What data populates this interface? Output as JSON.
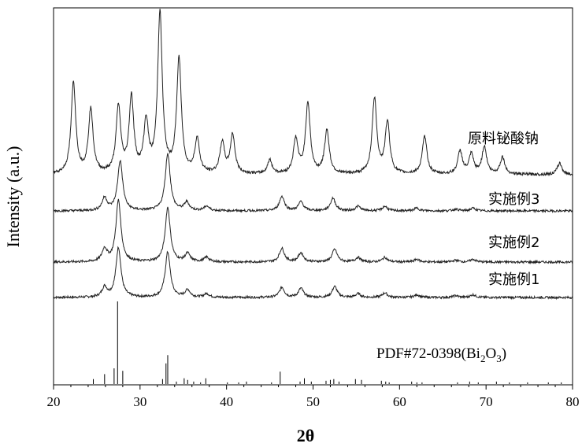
{
  "chart_data": {
    "type": "line",
    "xlabel": "2θ",
    "ylabel": "Intensity (a.u.)",
    "xlim": [
      20,
      80
    ],
    "x_ticks": [
      "20",
      "30",
      "40",
      "50",
      "60",
      "70",
      "80"
    ],
    "reference": {
      "label_main": "PDF#72-0398(Bi",
      "label_sub1": "2",
      "label_mid": "O",
      "label_sub2": "3",
      "label_end": ")",
      "sticks": [
        {
          "x": 24.6,
          "h": 0.06
        },
        {
          "x": 25.9,
          "h": 0.12
        },
        {
          "x": 27.0,
          "h": 0.19
        },
        {
          "x": 27.4,
          "h": 1.0
        },
        {
          "x": 28.0,
          "h": 0.16
        },
        {
          "x": 32.6,
          "h": 0.06
        },
        {
          "x": 33.0,
          "h": 0.25
        },
        {
          "x": 33.2,
          "h": 0.35
        },
        {
          "x": 34.2,
          "h": 0.03
        },
        {
          "x": 35.1,
          "h": 0.07
        },
        {
          "x": 35.5,
          "h": 0.05
        },
        {
          "x": 36.2,
          "h": 0.03
        },
        {
          "x": 37.0,
          "h": 0.02
        },
        {
          "x": 37.6,
          "h": 0.07
        },
        {
          "x": 40.1,
          "h": 0.02
        },
        {
          "x": 41.4,
          "h": 0.02
        },
        {
          "x": 42.3,
          "h": 0.03
        },
        {
          "x": 45.2,
          "h": 0.02
        },
        {
          "x": 46.2,
          "h": 0.15
        },
        {
          "x": 48.5,
          "h": 0.03
        },
        {
          "x": 49.0,
          "h": 0.07
        },
        {
          "x": 49.8,
          "h": 0.03
        },
        {
          "x": 51.5,
          "h": 0.04
        },
        {
          "x": 52.0,
          "h": 0.05
        },
        {
          "x": 52.4,
          "h": 0.06
        },
        {
          "x": 53.0,
          "h": 0.03
        },
        {
          "x": 54.9,
          "h": 0.06
        },
        {
          "x": 55.6,
          "h": 0.05
        },
        {
          "x": 57.9,
          "h": 0.04
        },
        {
          "x": 58.4,
          "h": 0.03
        },
        {
          "x": 58.8,
          "h": 0.02
        },
        {
          "x": 61.4,
          "h": 0.03
        },
        {
          "x": 62.0,
          "h": 0.02
        },
        {
          "x": 62.6,
          "h": 0.02
        },
        {
          "x": 66.7,
          "h": 0.02
        },
        {
          "x": 68.1,
          "h": 0.03
        },
        {
          "x": 69.1,
          "h": 0.02
        },
        {
          "x": 71.2,
          "h": 0.03
        },
        {
          "x": 72.7,
          "h": 0.02
        },
        {
          "x": 74.8,
          "h": 0.02
        },
        {
          "x": 77.2,
          "h": 0.02
        },
        {
          "x": 78.7,
          "h": 0.02
        }
      ]
    },
    "series": [
      {
        "name": "实施例1",
        "peaks": [
          [
            25.9,
            0.11
          ],
          [
            27.5,
            0.55
          ],
          [
            33.2,
            0.5
          ],
          [
            35.5,
            0.08
          ],
          [
            37.7,
            0.04
          ],
          [
            46.4,
            0.11
          ],
          [
            48.6,
            0.1
          ],
          [
            52.5,
            0.12
          ],
          [
            55.2,
            0.04
          ],
          [
            58.3,
            0.05
          ],
          [
            62.0,
            0.03
          ],
          [
            66.5,
            0.02
          ],
          [
            68.5,
            0.03
          ]
        ]
      },
      {
        "name": "实施例2",
        "peaks": [
          [
            25.9,
            0.14
          ],
          [
            27.5,
            0.68
          ],
          [
            33.2,
            0.6
          ],
          [
            35.5,
            0.09
          ],
          [
            37.7,
            0.05
          ],
          [
            46.4,
            0.15
          ],
          [
            48.6,
            0.1
          ],
          [
            52.5,
            0.14
          ],
          [
            55.2,
            0.05
          ],
          [
            58.3,
            0.05
          ],
          [
            62.0,
            0.03
          ],
          [
            66.5,
            0.02
          ],
          [
            68.5,
            0.03
          ]
        ]
      },
      {
        "name": "实施例3",
        "peaks": [
          [
            25.9,
            0.14
          ],
          [
            27.7,
            0.55
          ],
          [
            33.2,
            0.63
          ],
          [
            35.4,
            0.09
          ],
          [
            37.7,
            0.05
          ],
          [
            46.4,
            0.16
          ],
          [
            48.6,
            0.1
          ],
          [
            52.3,
            0.14
          ],
          [
            55.2,
            0.05
          ],
          [
            58.3,
            0.05
          ],
          [
            62.0,
            0.03
          ],
          [
            66.5,
            0.02
          ],
          [
            68.5,
            0.03
          ]
        ]
      },
      {
        "name": "原料铋酸钠",
        "peaks": [
          [
            22.3,
            0.8
          ],
          [
            24.3,
            0.56
          ],
          [
            27.5,
            0.58
          ],
          [
            29.0,
            0.66
          ],
          [
            30.7,
            0.44
          ],
          [
            32.3,
            1.4
          ],
          [
            34.5,
            1.0
          ],
          [
            36.6,
            0.3
          ],
          [
            39.5,
            0.27
          ],
          [
            40.7,
            0.34
          ],
          [
            45.0,
            0.12
          ],
          [
            48.0,
            0.3
          ],
          [
            49.4,
            0.62
          ],
          [
            51.6,
            0.38
          ],
          [
            57.1,
            0.66
          ],
          [
            58.6,
            0.45
          ],
          [
            62.9,
            0.33
          ],
          [
            67.0,
            0.2
          ],
          [
            68.3,
            0.17
          ],
          [
            69.8,
            0.24
          ],
          [
            71.9,
            0.15
          ],
          [
            78.5,
            0.1
          ]
        ]
      }
    ]
  }
}
